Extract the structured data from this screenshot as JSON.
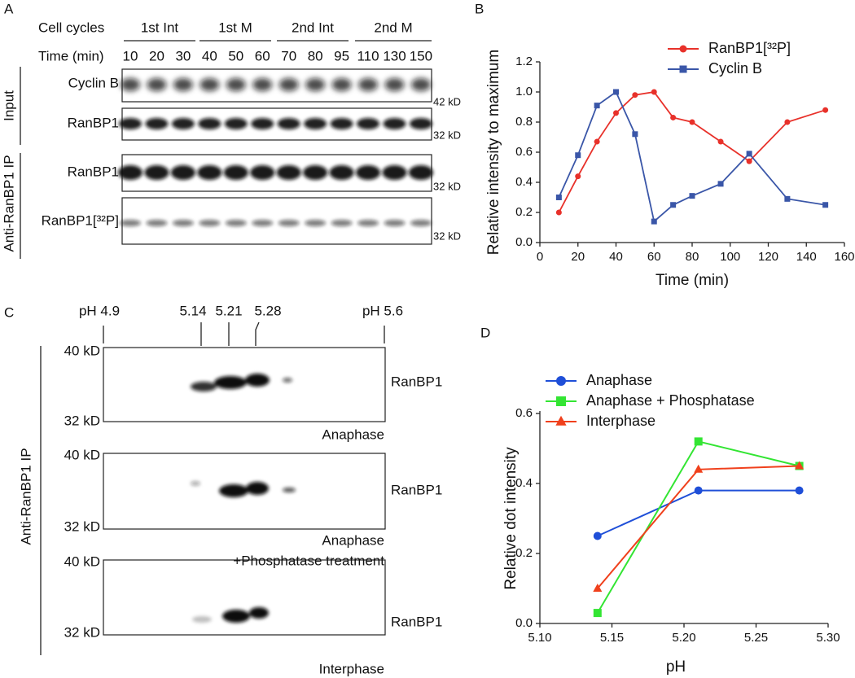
{
  "panel_labels": [
    "A",
    "B",
    "C",
    "D"
  ],
  "panel_a": {
    "cell_cycles_label": "Cell cycles",
    "groups": [
      "1st Int",
      "1st M",
      "2nd Int",
      "2nd M"
    ],
    "time_label": "Time (min)",
    "times": [
      10,
      20,
      30,
      40,
      50,
      60,
      70,
      80,
      95,
      110,
      130,
      150
    ],
    "rows": [
      {
        "label": "Cyclin B",
        "size": "42 kD"
      },
      {
        "label": "RanBP1",
        "size": "32 kD"
      },
      {
        "label": "RanBP1",
        "size": "32 kD"
      },
      {
        "label": "RanBP1[³²P]",
        "size": "32 kD"
      }
    ],
    "side_labels": [
      "Input",
      "Anti-RanBP1 IP"
    ]
  },
  "panel_c": {
    "ph_labels": [
      "pH 4.9",
      "5.14",
      "5.21",
      "5.28",
      "pH 5.6"
    ],
    "blots": [
      {
        "upper": "40 kD",
        "lower": "32 kD",
        "protein": "RanBP1",
        "caption": [
          "Anaphase"
        ]
      },
      {
        "upper": "40 kD",
        "lower": "32 kD",
        "protein": "RanBP1",
        "caption": [
          "Anaphase",
          "+Phosphatase treatment"
        ]
      },
      {
        "upper": "40 kD",
        "lower": "32 kD",
        "protein": "RanBP1",
        "caption": [
          "Interphase"
        ]
      }
    ],
    "side_label": "Anti-RanBP1 IP"
  },
  "chart_data": [
    {
      "type": "line",
      "xlabel": "Time (min)",
      "ylabel": "Relative intensity to maximum",
      "x": [
        10,
        20,
        30,
        40,
        50,
        60,
        70,
        80,
        95,
        110,
        130,
        150
      ],
      "series": [
        {
          "name": "RanBP1[³²P]",
          "color": "#e8312a",
          "marker": "circle",
          "values": [
            0.2,
            0.44,
            0.67,
            0.86,
            0.98,
            1.0,
            0.83,
            0.8,
            0.67,
            0.54,
            0.8,
            0.88
          ]
        },
        {
          "name": "Cyclin B",
          "color": "#3a56a8",
          "marker": "square",
          "values": [
            0.3,
            0.58,
            0.91,
            1.0,
            0.72,
            0.14,
            0.25,
            0.31,
            0.39,
            0.59,
            0.29,
            0.25
          ]
        }
      ],
      "xlim": [
        0,
        160
      ],
      "xticks": [
        0,
        20,
        40,
        60,
        80,
        100,
        120,
        140,
        160
      ],
      "ylim": [
        0,
        1.2
      ],
      "yticks": [
        {
          "value": 0,
          "label": "0.0"
        },
        0.2,
        0.4,
        0.6,
        0.8,
        {
          "value": 1,
          "label": "1.0"
        },
        1.2
      ],
      "legend": "upper right"
    },
    {
      "type": "line",
      "xlabel": "pH",
      "ylabel": "Relative dot intensity",
      "x": [
        5.14,
        5.21,
        5.28
      ],
      "series": [
        {
          "name": "Anaphase",
          "color": "#1f4fd8",
          "marker": "circle",
          "values": [
            0.25,
            0.38,
            0.38
          ]
        },
        {
          "name": "Anaphase + Phosphatase",
          "color": "#33e533",
          "marker": "square",
          "values": [
            0.03,
            0.52,
            0.45
          ]
        },
        {
          "name": "Interphase",
          "color": "#f0401c",
          "marker": "triangle",
          "values": [
            0.1,
            0.44,
            0.45
          ]
        }
      ],
      "xlim": [
        5.1,
        5.3
      ],
      "xticks": [
        {
          "value": 5.1,
          "label": "5.10"
        },
        5.15,
        {
          "value": 5.2,
          "label": "5.20"
        },
        5.25,
        {
          "value": 5.3,
          "label": "5.30"
        }
      ],
      "ylim": [
        0,
        0.6
      ],
      "yticks": [
        {
          "value": 0,
          "label": "0.0"
        },
        0.2,
        0.4,
        0.6
      ],
      "legend": "upper left"
    }
  ]
}
